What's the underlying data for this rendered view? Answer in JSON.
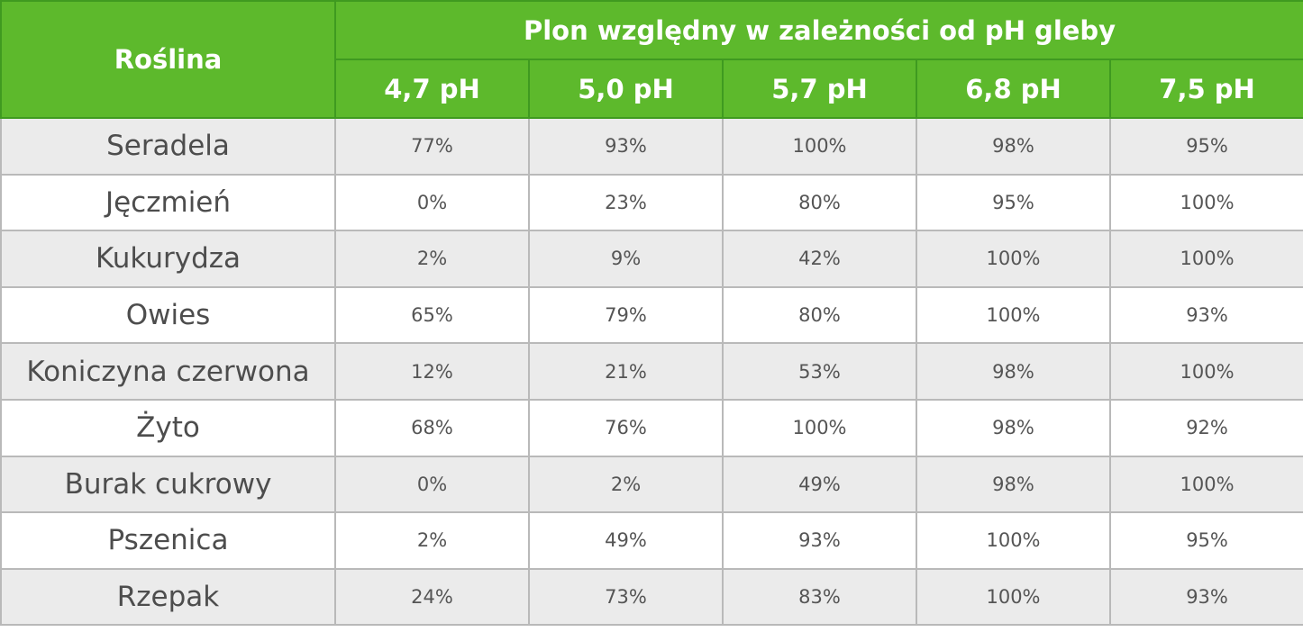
{
  "table": {
    "plant_header": "Roślina",
    "group_header": "Plon względny w zależności od pH gleby",
    "ph_headers": [
      "4,7 pH",
      "5,0 pH",
      "5,7 pH",
      "6,8 pH",
      "7,5 pH"
    ],
    "rows": [
      {
        "plant": "Seradela",
        "values": [
          "77%",
          "93%",
          "100%",
          "98%",
          "95%"
        ]
      },
      {
        "plant": "Jęczmień",
        "values": [
          "0%",
          "23%",
          "80%",
          "95%",
          "100%"
        ]
      },
      {
        "plant": "Kukurydza",
        "values": [
          "2%",
          "9%",
          "42%",
          "100%",
          "100%"
        ]
      },
      {
        "plant": "Owies",
        "values": [
          "65%",
          "79%",
          "80%",
          "100%",
          "93%"
        ]
      },
      {
        "plant": "Koniczyna czerwona",
        "values": [
          "12%",
          "21%",
          "53%",
          "98%",
          "100%"
        ]
      },
      {
        "plant": "Żyto",
        "values": [
          "68%",
          "76%",
          "100%",
          "98%",
          "92%"
        ]
      },
      {
        "plant": "Burak cukrowy",
        "values": [
          "0%",
          "2%",
          "49%",
          "98%",
          "100%"
        ]
      },
      {
        "plant": "Pszenica",
        "values": [
          "2%",
          "49%",
          "93%",
          "100%",
          "95%"
        ]
      },
      {
        "plant": "Rzepak",
        "values": [
          "24%",
          "73%",
          "83%",
          "100%",
          "93%"
        ]
      }
    ]
  },
  "colors": {
    "header_green": "#5db92c",
    "header_text": "#ffffff",
    "row_shade": "#ebebeb",
    "grid_line": "#b9b9b9"
  }
}
